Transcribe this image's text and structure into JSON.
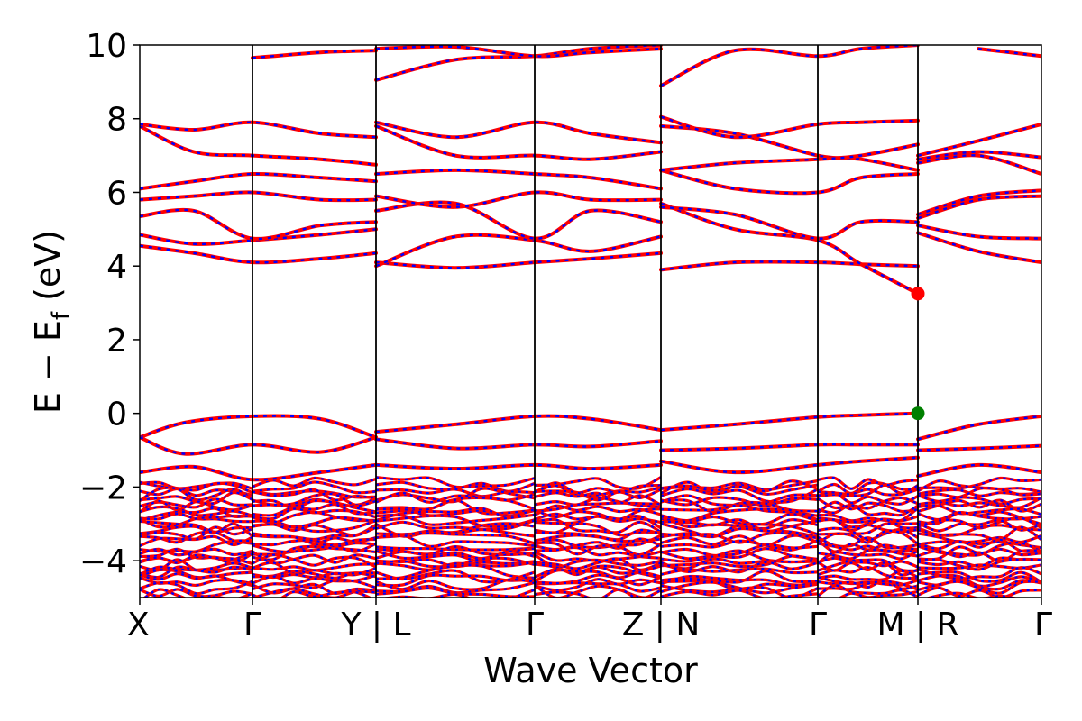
{
  "chart_data": {
    "type": "line",
    "xlabel": "Wave Vector",
    "ylabel": "E − E",
    "ylabel_sub": "f",
    "ylabel_unit": " (eV)",
    "ylim": [
      -5,
      10
    ],
    "yticks": [
      -4,
      -2,
      0,
      2,
      4,
      6,
      8,
      10
    ],
    "ytick_labels": [
      "−4",
      "−2",
      "0",
      "2",
      "4",
      "6",
      "8",
      "10"
    ],
    "x_path": [
      "X",
      "Γ",
      "Y | L",
      "Γ",
      "Z | N",
      "Γ",
      "M | R",
      "Γ"
    ],
    "segment_breaks": [
      0,
      0.125,
      0.262,
      0.438,
      0.578,
      0.752,
      0.863,
      1.0
    ],
    "grid": false,
    "band_line_colors": [
      "#ff0000",
      "#0000ff"
    ],
    "band_line_style": "red solid with blue dashes overlay",
    "markers": [
      {
        "name": "CBM",
        "x": 0.863,
        "y": 3.25,
        "color": "#ff0000"
      },
      {
        "name": "VBM",
        "x": 0.863,
        "y": 0.0,
        "color": "#008000"
      }
    ],
    "series": [
      {
        "x": [
          0,
          0.05,
          0.125,
          0.2,
          0.262
        ],
        "y": [
          -0.65,
          -0.25,
          -0.08,
          -0.15,
          -0.65
        ]
      },
      {
        "x": [
          0,
          0.05,
          0.125,
          0.2,
          0.262
        ],
        "y": [
          -0.65,
          -1.1,
          -0.85,
          -1.05,
          -0.65
        ]
      },
      {
        "x": [
          0,
          0.06,
          0.125,
          0.2,
          0.262
        ],
        "y": [
          -1.6,
          -1.45,
          -1.8,
          -1.6,
          -1.4
        ]
      },
      {
        "x": [
          0.262,
          0.35,
          0.438,
          0.5,
          0.578
        ],
        "y": [
          -0.5,
          -0.3,
          -0.08,
          -0.15,
          -0.45
        ]
      },
      {
        "x": [
          0.262,
          0.35,
          0.438,
          0.5,
          0.578
        ],
        "y": [
          -0.7,
          -0.95,
          -0.85,
          -0.9,
          -0.75
        ]
      },
      {
        "x": [
          0.262,
          0.35,
          0.438,
          0.5,
          0.578
        ],
        "y": [
          -1.4,
          -1.5,
          -1.4,
          -1.5,
          -1.4
        ]
      },
      {
        "x": [
          0.578,
          0.66,
          0.752,
          0.8,
          0.863
        ],
        "y": [
          -0.45,
          -0.3,
          -0.1,
          -0.05,
          0.0
        ]
      },
      {
        "x": [
          0.578,
          0.66,
          0.752,
          0.8,
          0.863
        ],
        "y": [
          -1.0,
          -0.95,
          -0.85,
          -0.85,
          -0.85
        ]
      },
      {
        "x": [
          0.578,
          0.66,
          0.752,
          0.8,
          0.863
        ],
        "y": [
          -1.3,
          -1.6,
          -1.4,
          -1.3,
          -1.2
        ]
      },
      {
        "x": [
          0.863,
          0.93,
          1.0
        ],
        "y": [
          -0.7,
          -0.3,
          -0.08
        ]
      },
      {
        "x": [
          0.863,
          0.93,
          1.0
        ],
        "y": [
          -1.0,
          -0.95,
          -0.88
        ]
      },
      {
        "x": [
          0.863,
          0.93,
          1.0
        ],
        "y": [
          -1.7,
          -1.4,
          -1.6
        ]
      },
      {
        "x": [
          0,
          0.06,
          0.125,
          0.2,
          0.262
        ],
        "y": [
          4.55,
          4.35,
          4.1,
          4.2,
          4.35
        ]
      },
      {
        "x": [
          0,
          0.06,
          0.125,
          0.2,
          0.262
        ],
        "y": [
          4.85,
          4.6,
          4.7,
          4.85,
          5.0
        ]
      },
      {
        "x": [
          0,
          0.06,
          0.125,
          0.2,
          0.262
        ],
        "y": [
          5.35,
          5.5,
          4.75,
          5.1,
          5.2
        ]
      },
      {
        "x": [
          0,
          0.06,
          0.125,
          0.2,
          0.262
        ],
        "y": [
          5.8,
          5.9,
          6.0,
          5.8,
          5.8
        ]
      },
      {
        "x": [
          0,
          0.06,
          0.125,
          0.2,
          0.262
        ],
        "y": [
          6.1,
          6.3,
          6.5,
          6.4,
          6.3
        ]
      },
      {
        "x": [
          0,
          0.06,
          0.125,
          0.2,
          0.262
        ],
        "y": [
          7.8,
          7.1,
          7.0,
          6.9,
          6.75
        ]
      },
      {
        "x": [
          0,
          0.06,
          0.125,
          0.2,
          0.262
        ],
        "y": [
          7.85,
          7.7,
          7.9,
          7.6,
          7.5
        ]
      },
      {
        "x": [
          0.125,
          0.2,
          0.262
        ],
        "y": [
          9.65,
          9.8,
          9.85
        ]
      },
      {
        "x": [
          0.262,
          0.35,
          0.438,
          0.5,
          0.578
        ],
        "y": [
          4.1,
          3.95,
          4.1,
          4.2,
          4.35
        ]
      },
      {
        "x": [
          0.262,
          0.35,
          0.438,
          0.5,
          0.578
        ],
        "y": [
          4.0,
          4.8,
          4.7,
          4.4,
          4.8
        ]
      },
      {
        "x": [
          0.262,
          0.35,
          0.438,
          0.5,
          0.578
        ],
        "y": [
          5.5,
          5.7,
          4.75,
          5.5,
          5.2
        ]
      },
      {
        "x": [
          0.262,
          0.35,
          0.438,
          0.5,
          0.578
        ],
        "y": [
          5.9,
          5.6,
          6.0,
          5.8,
          5.8
        ]
      },
      {
        "x": [
          0.262,
          0.35,
          0.438,
          0.5,
          0.578
        ],
        "y": [
          6.5,
          6.6,
          6.5,
          6.4,
          6.1
        ]
      },
      {
        "x": [
          0.262,
          0.35,
          0.438,
          0.5,
          0.578
        ],
        "y": [
          7.8,
          7.0,
          7.0,
          6.9,
          7.1
        ]
      },
      {
        "x": [
          0.262,
          0.35,
          0.438,
          0.5,
          0.578
        ],
        "y": [
          7.9,
          7.5,
          7.9,
          7.6,
          7.35
        ]
      },
      {
        "x": [
          0.262,
          0.35,
          0.438,
          0.5,
          0.578
        ],
        "y": [
          9.05,
          9.6,
          9.7,
          9.9,
          10.0
        ]
      },
      {
        "x": [
          0.262,
          0.35,
          0.438,
          0.5,
          0.578
        ],
        "y": [
          9.9,
          9.95,
          9.7,
          9.8,
          9.9
        ]
      },
      {
        "x": [
          0.578,
          0.66,
          0.752,
          0.8,
          0.863
        ],
        "y": [
          3.9,
          4.1,
          4.1,
          4.05,
          4.0
        ]
      },
      {
        "x": [
          0.578,
          0.66,
          0.752,
          0.8,
          0.863
        ],
        "y": [
          5.7,
          5.0,
          4.7,
          4.05,
          3.25
        ]
      },
      {
        "x": [
          0.578,
          0.66,
          0.752,
          0.8,
          0.863
        ],
        "y": [
          5.6,
          5.4,
          4.75,
          5.2,
          5.2
        ]
      },
      {
        "x": [
          0.578,
          0.66,
          0.752,
          0.8,
          0.863
        ],
        "y": [
          6.6,
          6.1,
          6.0,
          6.4,
          6.5
        ]
      },
      {
        "x": [
          0.578,
          0.66,
          0.752,
          0.8,
          0.863
        ],
        "y": [
          7.8,
          7.6,
          7.0,
          6.9,
          6.6
        ]
      },
      {
        "x": [
          0.578,
          0.66,
          0.752,
          0.8,
          0.863
        ],
        "y": [
          8.05,
          7.5,
          7.85,
          7.9,
          7.95
        ]
      },
      {
        "x": [
          0.578,
          0.66,
          0.752,
          0.8,
          0.863
        ],
        "y": [
          8.9,
          9.85,
          9.7,
          9.9,
          10.0
        ]
      },
      {
        "x": [
          0.578,
          0.66,
          0.752,
          0.8,
          0.863
        ],
        "y": [
          6.6,
          6.8,
          6.9,
          7.0,
          7.3
        ]
      },
      {
        "x": [
          0.863,
          0.93,
          1.0
        ],
        "y": [
          4.9,
          4.4,
          4.1
        ]
      },
      {
        "x": [
          0.863,
          0.93,
          1.0
        ],
        "y": [
          5.1,
          4.8,
          4.75
        ]
      },
      {
        "x": [
          0.863,
          0.93,
          1.0
        ],
        "y": [
          5.3,
          5.8,
          5.9
        ]
      },
      {
        "x": [
          0.863,
          0.93,
          1.0
        ],
        "y": [
          5.4,
          5.9,
          6.05
        ]
      },
      {
        "x": [
          0.863,
          0.93,
          1.0
        ],
        "y": [
          6.8,
          7.0,
          6.5
        ]
      },
      {
        "x": [
          0.863,
          0.93,
          1.0
        ],
        "y": [
          6.9,
          7.1,
          6.95
        ]
      },
      {
        "x": [
          0.863,
          0.93,
          1.0
        ],
        "y": [
          7.0,
          7.4,
          7.85
        ]
      },
      {
        "x": [
          0.93,
          1.0
        ],
        "y": [
          9.9,
          9.7
        ]
      }
    ]
  }
}
